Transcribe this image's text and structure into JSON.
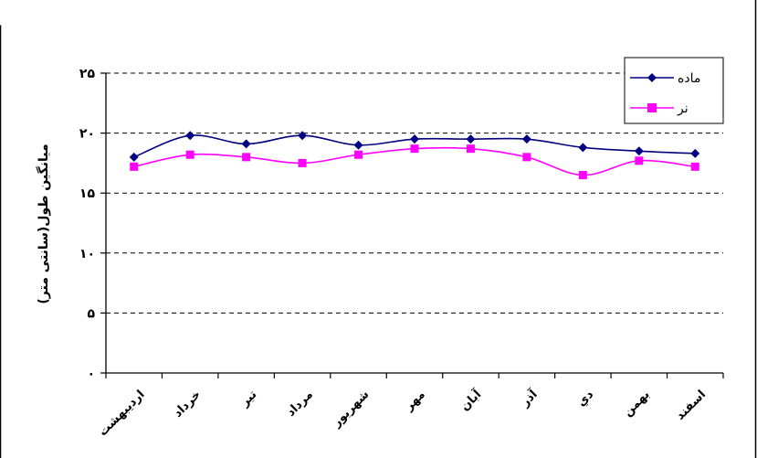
{
  "chart_data": {
    "type": "line",
    "title": "",
    "ylabel": "میانگین طول(سانتی متر)",
    "xlabel": "",
    "ylim": [
      0,
      25
    ],
    "yticks": [
      0,
      5,
      10,
      15,
      20,
      25
    ],
    "ytick_labels": [
      "۰",
      "۵",
      "۱۰",
      "۱۵",
      "۲۰",
      "۲۵"
    ],
    "grid": "horizontal-dashed",
    "legend_position": "top-right",
    "categories": [
      "ارديبهشت",
      "خرداد",
      "تير",
      "مرداد",
      "شهريور",
      "مهر",
      "آبان",
      "آذر",
      "دي",
      "بهمن",
      "اسفند"
    ],
    "series": [
      {
        "name": "ماده",
        "color": "#000080",
        "marker": "diamond",
        "values": [
          18.0,
          19.8,
          19.1,
          19.8,
          19.0,
          19.5,
          19.5,
          19.5,
          18.8,
          18.5,
          18.3
        ]
      },
      {
        "name": "نر",
        "color": "#FF00FF",
        "marker": "square",
        "values": [
          17.2,
          18.2,
          18.0,
          17.5,
          18.2,
          18.7,
          18.7,
          18.0,
          16.5,
          17.7,
          17.2
        ]
      }
    ]
  }
}
